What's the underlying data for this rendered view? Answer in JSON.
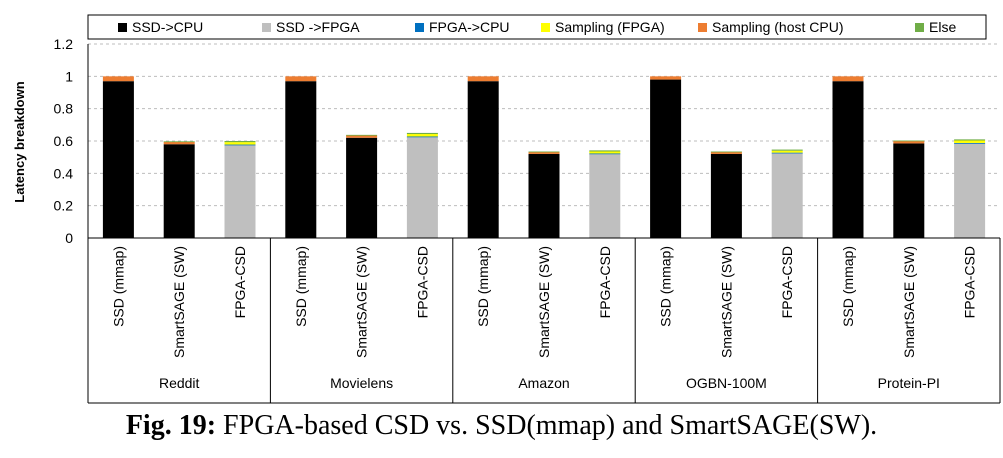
{
  "chart_data": {
    "type": "bar",
    "stacked": true,
    "ylabel": "Latency breakdown",
    "xlabel": "",
    "ylim": [
      0,
      1.2
    ],
    "yticks": [
      "0",
      "0.2",
      "0.4",
      "0.6",
      "0.8",
      "1",
      "1.2"
    ],
    "ytick_values": [
      0,
      0.2,
      0.4,
      0.6,
      0.8,
      1.0,
      1.2
    ],
    "grid": "horizontal dashed",
    "legend_position": "top",
    "groups": [
      "Reddit",
      "Movielens",
      "Amazon",
      "OGBN-100M",
      "Protein-PI"
    ],
    "categories": [
      "SSD (mmap)",
      "SmartSAGE (SW)",
      "FPGA-CSD"
    ],
    "series": [
      {
        "name": "SSD->CPU",
        "color": "#000000",
        "values": [
          [
            0.97,
            0.58,
            0.0
          ],
          [
            0.97,
            0.62,
            0.0
          ],
          [
            0.97,
            0.52,
            0.0
          ],
          [
            0.98,
            0.52,
            0.0
          ],
          [
            0.97,
            0.585,
            0.0
          ]
        ]
      },
      {
        "name": "SSD ->FPGA",
        "color": "#bfbfbf",
        "values": [
          [
            0.0,
            0.0,
            0.575
          ],
          [
            0.0,
            0.0,
            0.625
          ],
          [
            0.0,
            0.0,
            0.52
          ],
          [
            0.0,
            0.0,
            0.525
          ],
          [
            0.0,
            0.0,
            0.585
          ]
        ]
      },
      {
        "name": "FPGA->CPU",
        "color": "#0070c0",
        "values": [
          [
            0.0,
            0.0,
            0.003
          ],
          [
            0.0,
            0.0,
            0.003
          ],
          [
            0.0,
            0.0,
            0.003
          ],
          [
            0.0,
            0.0,
            0.003
          ],
          [
            0.0,
            0.0,
            0.003
          ]
        ]
      },
      {
        "name": "Sampling (FPGA)",
        "color": "#ffff00",
        "values": [
          [
            0.0,
            0.0,
            0.015
          ],
          [
            0.0,
            0.0,
            0.015
          ],
          [
            0.0,
            0.0,
            0.012
          ],
          [
            0.0,
            0.0,
            0.012
          ],
          [
            0.0,
            0.0,
            0.015
          ]
        ]
      },
      {
        "name": "Sampling (host CPU)",
        "color": "#ed7d31",
        "values": [
          [
            0.03,
            0.015,
            0.0
          ],
          [
            0.03,
            0.015,
            0.0
          ],
          [
            0.03,
            0.013,
            0.0
          ],
          [
            0.02,
            0.013,
            0.0
          ],
          [
            0.03,
            0.015,
            0.0
          ]
        ]
      },
      {
        "name": "Else",
        "color": "#70ad47",
        "values": [
          [
            0.0,
            0.003,
            0.007
          ],
          [
            0.0,
            0.003,
            0.007
          ],
          [
            0.0,
            0.002,
            0.007
          ],
          [
            0.0,
            0.002,
            0.007
          ],
          [
            0.0,
            0.003,
            0.007
          ]
        ]
      }
    ]
  },
  "caption": {
    "label": "Fig. 19:",
    "text": " FPGA-based CSD vs. SSD(mmap) and SmartSAGE(SW)."
  }
}
